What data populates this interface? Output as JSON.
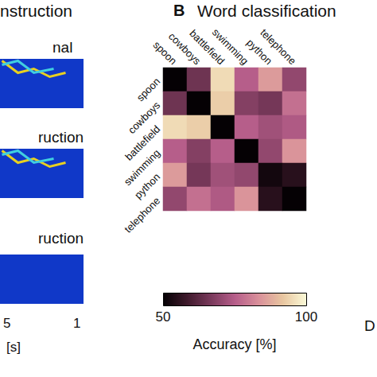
{
  "chart_data": {
    "type": "heatmap",
    "panel": "B",
    "title": "Word classification",
    "categories": [
      "spoon",
      "cowboys",
      "battlefield",
      "swimming",
      "python",
      "telephone"
    ],
    "cells": [
      [
        50,
        65,
        95,
        75,
        85,
        70
      ],
      [
        65,
        50,
        93,
        68,
        66,
        78
      ],
      [
        95,
        93,
        50,
        75,
        72,
        74
      ],
      [
        75,
        68,
        75,
        50,
        70,
        84
      ],
      [
        85,
        66,
        72,
        70,
        52,
        55
      ],
      [
        70,
        78,
        74,
        84,
        55,
        50
      ]
    ],
    "colorbar": {
      "range": [
        50,
        100
      ],
      "ticks": [
        50,
        100
      ],
      "label": "Accuracy [%]"
    },
    "annotations": [
      "nstruction",
      "nal",
      "ruction",
      "ruction",
      "5",
      "1",
      "[s]",
      "D"
    ]
  }
}
